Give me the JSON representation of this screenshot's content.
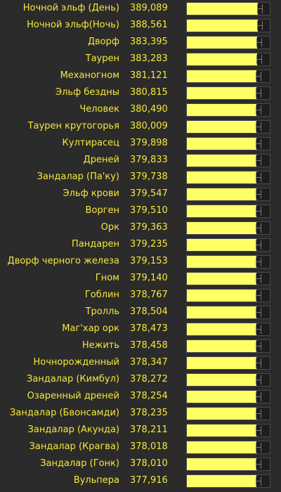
{
  "chart_data": {
    "type": "bar",
    "orientation": "horizontal",
    "xlim": [
      0,
      389089
    ],
    "error_bars": true,
    "colors": {
      "background": "#2b2b2b",
      "text": "#f5e83b",
      "bar": "#ffff66",
      "error_bar": "#777777"
    },
    "rows": [
      {
        "category": "Ночной эльф (День)",
        "value": 389089,
        "label": "389,089"
      },
      {
        "category": "Ночной эльф(Ночь)",
        "value": 388561,
        "label": "388,561"
      },
      {
        "category": "Дворф",
        "value": 383395,
        "label": "383,395"
      },
      {
        "category": "Таурен",
        "value": 383283,
        "label": "383,283"
      },
      {
        "category": "Механогном",
        "value": 381121,
        "label": "381,121"
      },
      {
        "category": "Эльф бездны",
        "value": 380815,
        "label": "380,815"
      },
      {
        "category": "Человек",
        "value": 380490,
        "label": "380,490"
      },
      {
        "category": "Таурен крутогорья",
        "value": 380009,
        "label": "380,009"
      },
      {
        "category": "Култирасец",
        "value": 379898,
        "label": "379,898"
      },
      {
        "category": "Дреней",
        "value": 379833,
        "label": "379,833"
      },
      {
        "category": "Зандалар (Па'ку)",
        "value": 379738,
        "label": "379,738"
      },
      {
        "category": "Эльф крови",
        "value": 379547,
        "label": "379,547"
      },
      {
        "category": "Ворген",
        "value": 379510,
        "label": "379,510"
      },
      {
        "category": "Орк",
        "value": 379363,
        "label": "379,363"
      },
      {
        "category": "Пандарен",
        "value": 379235,
        "label": "379,235"
      },
      {
        "category": "Дворф черного железа",
        "value": 379153,
        "label": "379,153"
      },
      {
        "category": "Гном",
        "value": 379140,
        "label": "379,140"
      },
      {
        "category": "Гоблин",
        "value": 378767,
        "label": "378,767"
      },
      {
        "category": "Тролль",
        "value": 378504,
        "label": "378,504"
      },
      {
        "category": "Маг'хар орк",
        "value": 378473,
        "label": "378,473"
      },
      {
        "category": "Нежить",
        "value": 378458,
        "label": "378,458"
      },
      {
        "category": "Ночнорожденный",
        "value": 378347,
        "label": "378,347"
      },
      {
        "category": "Зандалар (Кимбул)",
        "value": 378272,
        "label": "378,272"
      },
      {
        "category": "Озаренный дреней",
        "value": 378254,
        "label": "378,254"
      },
      {
        "category": "Зандалар (Бвонсамди)",
        "value": 378235,
        "label": "378,235"
      },
      {
        "category": "Зандалар (Акунда)",
        "value": 378211,
        "label": "378,211"
      },
      {
        "category": "Зандалар (Крагва)",
        "value": 378018,
        "label": "378,018"
      },
      {
        "category": "Зандалар (Гонк)",
        "value": 378010,
        "label": "378,010"
      },
      {
        "category": "Вульпера",
        "value": 377916,
        "label": "377,916"
      }
    ]
  }
}
